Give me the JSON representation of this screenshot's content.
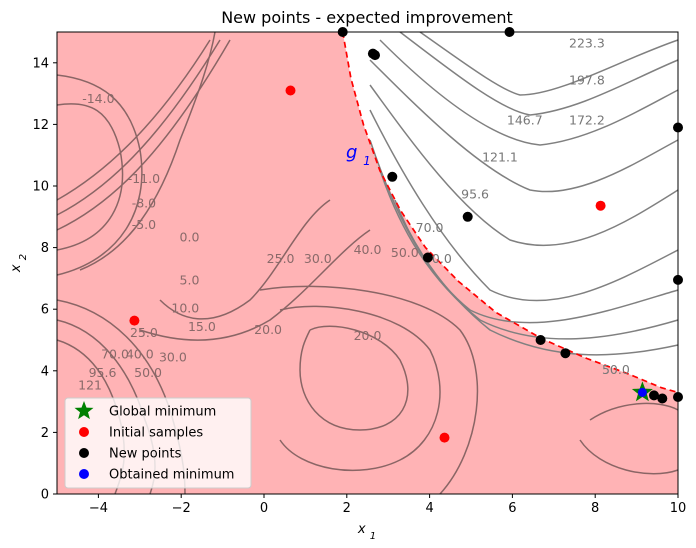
{
  "chart_data": {
    "type": "scatter",
    "title": "New points - expected improvement",
    "xlabel": "x1",
    "ylabel": "x2",
    "xlim": [
      -5,
      10
    ],
    "ylim": [
      0,
      15
    ],
    "xticks": [
      -4,
      -2,
      0,
      2,
      4,
      6,
      8,
      10
    ],
    "yticks": [
      0,
      2,
      4,
      6,
      8,
      10,
      12,
      14
    ],
    "constraint_label": "g1",
    "constraint_boundary": [
      [
        1.9,
        15
      ],
      [
        2.1,
        13.5
      ],
      [
        2.4,
        12
      ],
      [
        2.8,
        10.5
      ],
      [
        3.3,
        9.2
      ],
      [
        3.9,
        8
      ],
      [
        4.7,
        6.9
      ],
      [
        5.6,
        5.9
      ],
      [
        6.7,
        5.05
      ],
      [
        7.8,
        4.4
      ],
      [
        8.8,
        3.9
      ],
      [
        9.6,
        3.45
      ],
      [
        10,
        3.3
      ]
    ],
    "series": [
      {
        "name": "Global minimum",
        "color": "#008000",
        "marker": "star",
        "x": [
          9.14
        ],
        "y": [
          3.3
        ]
      },
      {
        "name": "Initial samples",
        "color": "#ff0000",
        "marker": "circle",
        "x": [
          0.64,
          -3.13,
          4.36,
          8.13
        ],
        "y": [
          13.1,
          5.63,
          1.83,
          9.36
        ]
      },
      {
        "name": "New points",
        "color": "#000000",
        "marker": "circle",
        "x": [
          1.9,
          2.63,
          2.68,
          3.1,
          3.96,
          4.92,
          5.93,
          6.68,
          7.28,
          9.42,
          9.62,
          10.0,
          10.0,
          10.0
        ],
        "y": [
          15.0,
          14.3,
          14.25,
          10.3,
          7.68,
          9.0,
          15.0,
          5.0,
          4.57,
          3.2,
          3.1,
          3.15,
          6.95,
          11.9
        ]
      },
      {
        "name": "Obtained minimum",
        "color": "#0000ff",
        "marker": "circle",
        "x": [
          9.14
        ],
        "y": [
          3.3
        ]
      }
    ],
    "contour_labels": [
      {
        "text": "223.3",
        "x": 7.8,
        "y": 14.5,
        "tone": "light"
      },
      {
        "text": "197.8",
        "x": 7.8,
        "y": 13.3,
        "tone": "light"
      },
      {
        "text": "172.2",
        "x": 7.8,
        "y": 12.0,
        "tone": "light"
      },
      {
        "text": "146.7",
        "x": 6.3,
        "y": 12.0,
        "tone": "light"
      },
      {
        "text": "121.1",
        "x": 5.7,
        "y": 10.8,
        "tone": "light"
      },
      {
        "text": "95.6",
        "x": 5.1,
        "y": 9.6,
        "tone": "light"
      },
      {
        "text": "70.0",
        "x": 4.0,
        "y": 8.5,
        "tone": "light"
      },
      {
        "text": "60.0",
        "x": 4.2,
        "y": 7.5,
        "tone": "light"
      },
      {
        "text": "50.0",
        "x": 8.5,
        "y": 3.9,
        "tone": "light"
      },
      {
        "text": "-14.0",
        "x": -4.0,
        "y": 12.7,
        "tone": "dark"
      },
      {
        "text": "-11.0",
        "x": -2.9,
        "y": 10.1,
        "tone": "dark"
      },
      {
        "text": "-8.0",
        "x": -2.9,
        "y": 9.3,
        "tone": "dark"
      },
      {
        "text": "-5.0",
        "x": -2.9,
        "y": 8.6,
        "tone": "dark"
      },
      {
        "text": "0.0",
        "x": -1.8,
        "y": 8.2,
        "tone": "dark"
      },
      {
        "text": "5.0",
        "x": -1.8,
        "y": 6.8,
        "tone": "dark"
      },
      {
        "text": "10.0",
        "x": -1.9,
        "y": 5.9,
        "tone": "dark"
      },
      {
        "text": "15.0",
        "x": -1.5,
        "y": 5.3,
        "tone": "dark"
      },
      {
        "text": "20.0",
        "x": 0.1,
        "y": 5.2,
        "tone": "dark"
      },
      {
        "text": "25.0",
        "x": 0.4,
        "y": 7.5,
        "tone": "dark"
      },
      {
        "text": "30.0",
        "x": 1.3,
        "y": 7.5,
        "tone": "dark"
      },
      {
        "text": "40.0",
        "x": 2.5,
        "y": 7.8,
        "tone": "dark"
      },
      {
        "text": "50.0",
        "x": 3.4,
        "y": 7.7,
        "tone": "dark"
      },
      {
        "text": "20.0",
        "x": 2.5,
        "y": 5.0,
        "tone": "dark"
      },
      {
        "text": "25.0",
        "x": -2.9,
        "y": 5.1,
        "tone": "dark"
      },
      {
        "text": "30.0",
        "x": -2.2,
        "y": 4.3,
        "tone": "dark"
      },
      {
        "text": "40.0",
        "x": -3.0,
        "y": 4.4,
        "tone": "dark"
      },
      {
        "text": "50.0",
        "x": -2.8,
        "y": 3.8,
        "tone": "dark"
      },
      {
        "text": "70.0",
        "x": -3.6,
        "y": 4.4,
        "tone": "dark"
      },
      {
        "text": "95.6",
        "x": -3.9,
        "y": 3.8,
        "tone": "dark"
      },
      {
        "text": "121",
        "x": -4.2,
        "y": 3.4,
        "tone": "dark"
      }
    ],
    "legend_position": "lower-left",
    "grid": false
  },
  "colors": {
    "feasible_fill": "#ffb3b5",
    "boundary": "#ff0000",
    "contour_light": "#808080",
    "contour_dark": "#8a6565"
  }
}
